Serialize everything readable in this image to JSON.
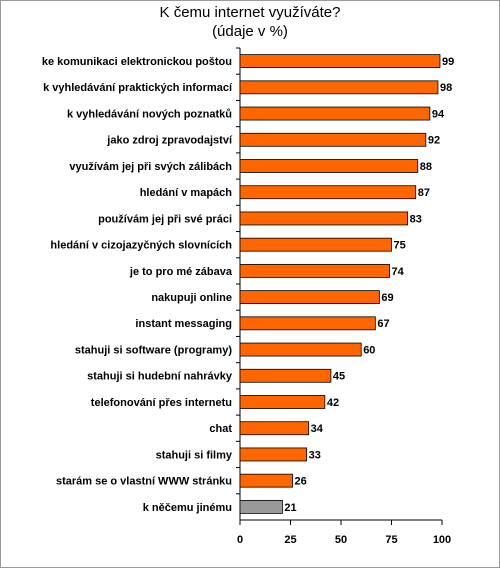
{
  "chart_data": {
    "type": "barh",
    "title": "K čemu internet využíváte?",
    "subtitle": "(údaje v %)",
    "categories": [
      "ke komunikaci elektronickou poštou",
      "k vyhledávání praktických informací",
      "k vyhledávání nových poznatků",
      "jako zdroj zpravodajství",
      "využívám jej při svých zálibách",
      "hledání v mapách",
      "používám jej při své práci",
      "hledání v cizojazyčných slovnících",
      "je to pro mé zábava",
      "nakupuji online",
      "instant messaging",
      "stahuji si software (programy)",
      "stahuji si hudební nahrávky",
      "telefonování přes internetu",
      "chat",
      "stahuji si filmy",
      "starám se o  vlastní WWW stránku",
      "k něčemu jinému"
    ],
    "values": [
      99,
      98,
      94,
      92,
      88,
      87,
      83,
      75,
      74,
      69,
      67,
      60,
      45,
      42,
      34,
      33,
      26,
      21
    ],
    "colors": [
      "#ff6600",
      "#ff6600",
      "#ff6600",
      "#ff6600",
      "#ff6600",
      "#ff6600",
      "#ff6600",
      "#ff6600",
      "#ff6600",
      "#ff6600",
      "#ff6600",
      "#ff6600",
      "#ff6600",
      "#ff6600",
      "#ff6600",
      "#ff6600",
      "#ff6600",
      "#999999"
    ],
    "xlim": [
      0,
      100
    ],
    "xticks": [
      0,
      25,
      50,
      75,
      100
    ],
    "grid": false
  }
}
